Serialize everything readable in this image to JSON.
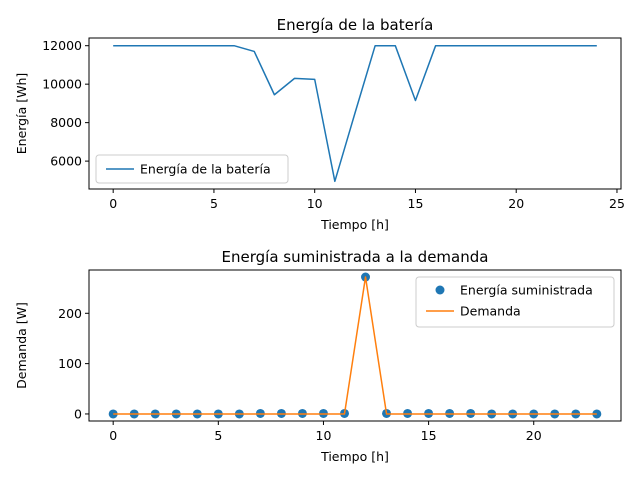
{
  "chart_data": [
    {
      "type": "line",
      "title": "Energía de la batería",
      "xlabel": "Tiempo [h]",
      "ylabel": "Energía [Wh]",
      "xlim": [
        -1.2,
        25.2
      ],
      "ylim": [
        4550,
        12400
      ],
      "xticks": [
        0,
        5,
        10,
        15,
        20,
        25
      ],
      "yticks": [
        6000,
        8000,
        10000,
        12000
      ],
      "legend": "lower-left",
      "series": [
        {
          "name": "Energía de la batería",
          "color": "#1f77b4",
          "style": "line",
          "x": [
            0,
            1,
            2,
            3,
            4,
            5,
            6,
            7,
            8,
            9,
            10,
            11,
            12,
            13,
            14,
            15,
            16,
            17,
            18,
            19,
            20,
            21,
            22,
            23,
            24
          ],
          "y": [
            12000,
            12000,
            12000,
            12000,
            12000,
            12000,
            12000,
            11700,
            9450,
            10300,
            10250,
            4950,
            8500,
            12000,
            12000,
            9150,
            12000,
            12000,
            12000,
            12000,
            12000,
            12000,
            12000,
            12000,
            12000
          ]
        }
      ]
    },
    {
      "type": "line",
      "title": "Energía suministrada a la demanda",
      "xlabel": "Tiempo [h]",
      "ylabel": "Demanda [W]",
      "xlim": [
        -1.15,
        24.15
      ],
      "ylim": [
        -14,
        286
      ],
      "xticks": [
        0,
        5,
        10,
        15,
        20
      ],
      "yticks": [
        0,
        100,
        200
      ],
      "legend": "top-right",
      "series": [
        {
          "name": "Energía suministrada",
          "color": "#1f77b4",
          "style": "markers",
          "x": [
            0,
            1,
            2,
            3,
            4,
            5,
            6,
            7,
            8,
            9,
            10,
            11,
            12,
            13,
            14,
            15,
            16,
            17,
            18,
            19,
            20,
            21,
            22,
            23
          ],
          "y": [
            0,
            0,
            0,
            0,
            0,
            0,
            0,
            1,
            1,
            1,
            1,
            1,
            272,
            1,
            1,
            1,
            1,
            1,
            0,
            0,
            0,
            0,
            0,
            0
          ]
        },
        {
          "name": "Demanda",
          "color": "#ff7f0e",
          "style": "line",
          "x": [
            0,
            1,
            2,
            3,
            4,
            5,
            6,
            7,
            8,
            9,
            10,
            11,
            12,
            13,
            14,
            15,
            16,
            17,
            18,
            19,
            20,
            21,
            22,
            23
          ],
          "y": [
            0,
            0,
            0,
            0,
            0,
            0,
            0,
            0,
            0,
            0,
            0,
            0,
            272,
            0,
            0,
            0,
            0,
            0,
            0,
            0,
            0,
            0,
            0,
            0
          ]
        }
      ]
    }
  ]
}
